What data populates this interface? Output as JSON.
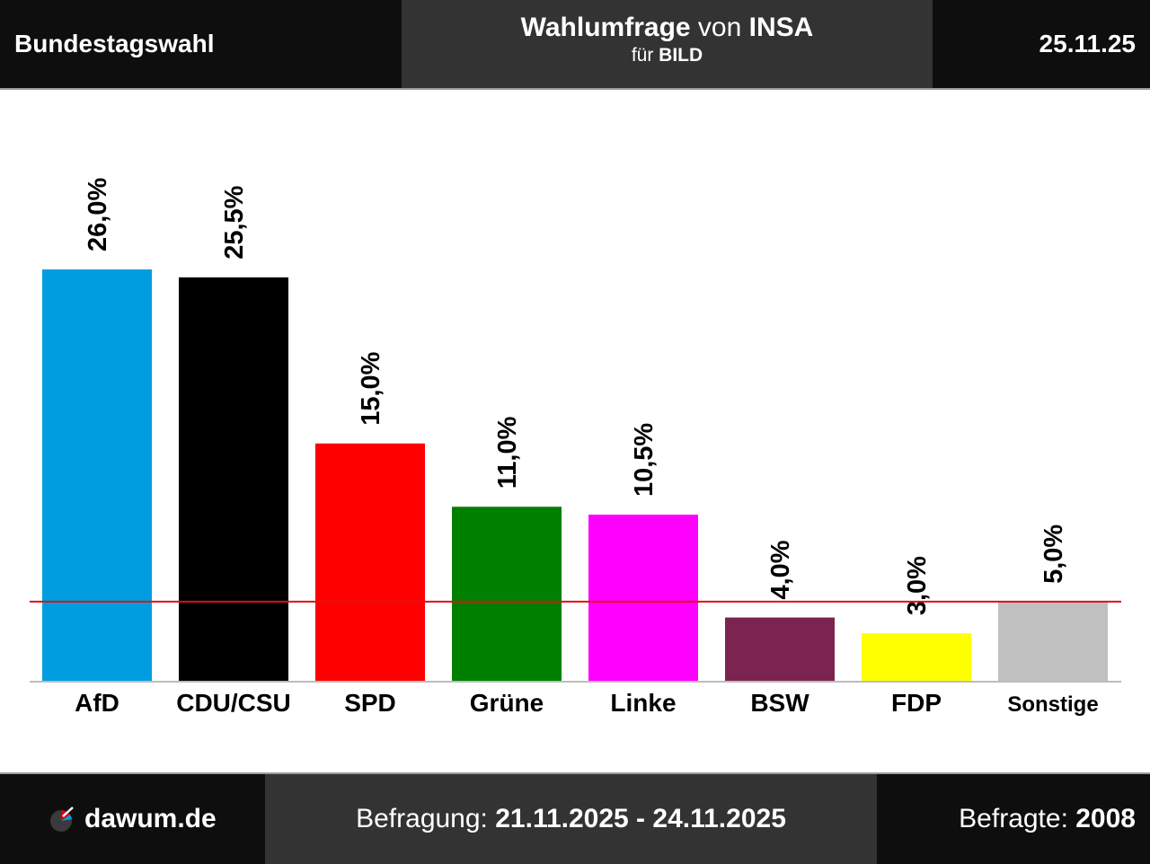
{
  "header": {
    "title_left": "Bundestagswahl",
    "center_bold_1": "Wahlumfrage",
    "center_mid": " von ",
    "center_bold_2": "INSA",
    "center_sub_prefix": "für ",
    "center_sub_bold": "BILD",
    "date": "25.11.25"
  },
  "footer": {
    "brand": "dawum.de",
    "survey_label": "Befragung: ",
    "survey_range": "21.11.2025 - 24.11.2025",
    "respondents_label": "Befragte: ",
    "respondents_value": "2008"
  },
  "chart_data": {
    "type": "bar",
    "categories": [
      "AfD",
      "CDU/CSU",
      "SPD",
      "Grüne",
      "Linke",
      "BSW",
      "FDP",
      "Sonstige"
    ],
    "values": [
      26.0,
      25.5,
      15.0,
      11.0,
      10.5,
      4.0,
      3.0,
      5.0
    ],
    "labels": [
      "26,0%",
      "25,5%",
      "15,0%",
      "11,0%",
      "10,5%",
      "4,0%",
      "3,0%",
      "5,0%"
    ],
    "colors": [
      "#009ee0",
      "#000000",
      "#ff0000",
      "#008000",
      "#ff00ff",
      "#7b2450",
      "#ffff00",
      "#c0c0c0"
    ],
    "threshold": 5.0,
    "threshold_color": "#e01010",
    "ylim": [
      0,
      26.0
    ]
  }
}
